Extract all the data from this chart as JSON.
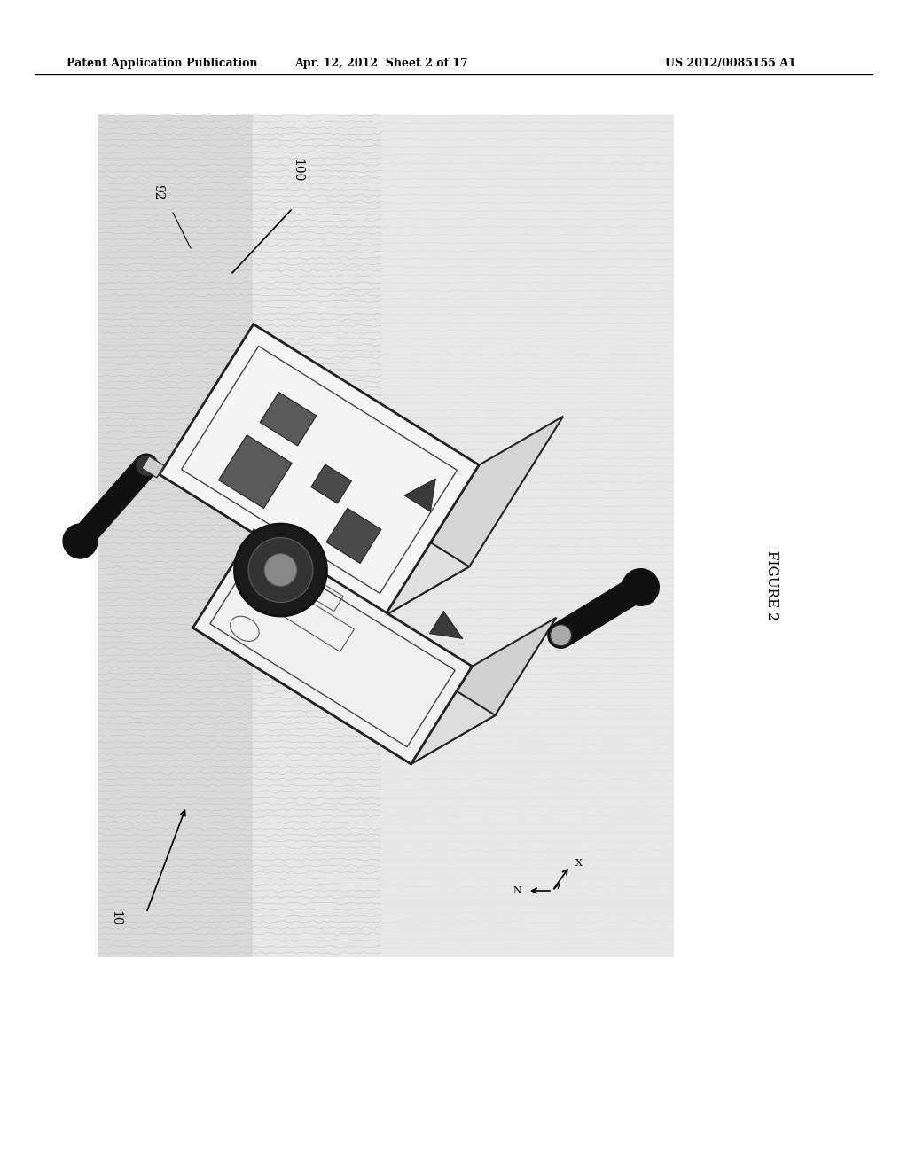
{
  "title_left": "Patent Application Publication",
  "title_center": "Apr. 12, 2012  Sheet 2 of 17",
  "title_right": "US 2012/0085155 A1",
  "figure_label": "FIGURE 2",
  "label_100": "100",
  "label_92": "92",
  "label_10": "10",
  "background_color": "#ffffff",
  "page_width": 10.24,
  "page_height": 13.2,
  "dpi": 100
}
